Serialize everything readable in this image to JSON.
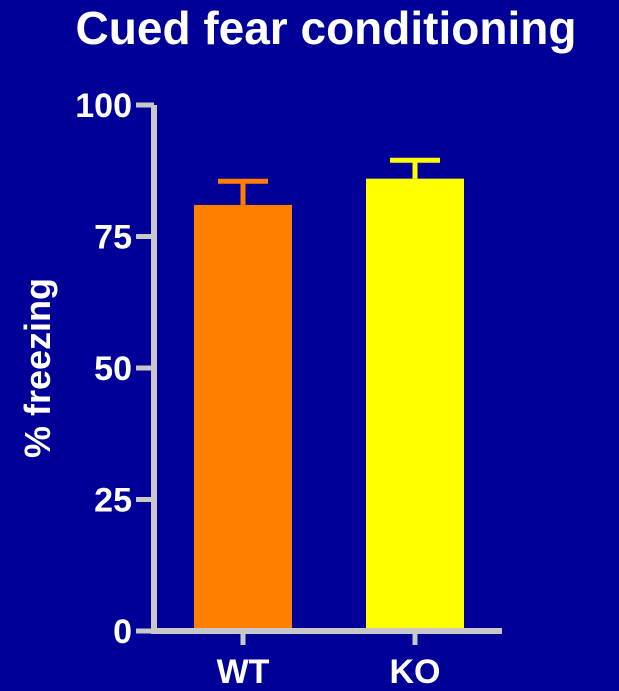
{
  "chart_data": {
    "type": "bar",
    "title": "Cued fear conditioning",
    "xlabel": "",
    "ylabel": "% freezing",
    "categories": [
      "WT",
      "KO"
    ],
    "values": [
      81,
      86
    ],
    "errors": [
      4.5,
      3.5
    ],
    "bar_colors": [
      "#ff8000",
      "#ffff00"
    ],
    "ylim": [
      0,
      100
    ],
    "yticks": [
      0,
      25,
      50,
      75,
      100
    ],
    "ytick_labels": [
      "0",
      "25",
      "50",
      "75",
      "100"
    ],
    "grid": false,
    "legend": "none"
  },
  "colors": {
    "background": "#000099",
    "axis": "#c8c8c8",
    "text": "#ffffff"
  }
}
